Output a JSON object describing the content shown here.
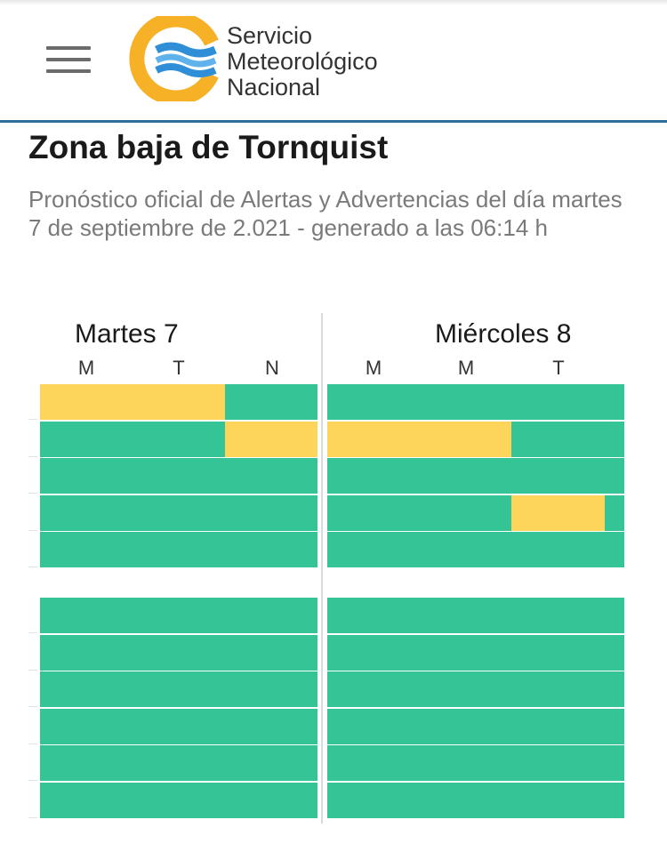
{
  "header": {
    "logo_lines": [
      "Servicio",
      "Meteorológico",
      "Nacional"
    ]
  },
  "page": {
    "title": "Zona baja de Tornquist",
    "subtitle": "Pronóstico oficial de Alertas y Advertencias del día martes 7 de septiembre de 2.021 - generado a las 06:14 h"
  },
  "days": [
    {
      "label": "Martes 7",
      "periods": [
        "M",
        "T",
        "N"
      ]
    },
    {
      "label": "Miércoles 8",
      "periods": [
        "M",
        "M",
        "T"
      ]
    }
  ],
  "colors": {
    "green": "#35c495",
    "yellow": "#fdd55a",
    "header_line": "#2f6c9a",
    "logo_orange": "#f6b126",
    "logo_blue": "#2e8fd8"
  },
  "alert_grid": {
    "group1": [
      {
        "day1": [
          [
            "yellow",
            0.0,
            0.667
          ],
          [
            "green",
            0.667,
            1.0
          ]
        ],
        "day2": [
          [
            "green",
            0.0,
            1.0
          ]
        ]
      },
      {
        "day1": [
          [
            "green",
            0.0,
            0.667
          ],
          [
            "yellow",
            0.667,
            1.0
          ]
        ],
        "day2": [
          [
            "yellow",
            0.0,
            0.62
          ],
          [
            "green",
            0.62,
            1.0
          ]
        ]
      },
      {
        "day1": [
          [
            "green",
            0.0,
            1.0
          ]
        ],
        "day2": [
          [
            "green",
            0.0,
            1.0
          ]
        ]
      },
      {
        "day1": [
          [
            "green",
            0.0,
            1.0
          ]
        ],
        "day2": [
          [
            "green",
            0.0,
            0.62
          ],
          [
            "yellow",
            0.62,
            0.935
          ],
          [
            "green",
            0.935,
            1.0
          ]
        ]
      },
      {
        "day1": [
          [
            "green",
            0.0,
            1.0
          ]
        ],
        "day2": [
          [
            "green",
            0.0,
            1.0
          ]
        ]
      }
    ],
    "group2": [
      {
        "day1": [
          [
            "green",
            0.0,
            1.0
          ]
        ],
        "day2": [
          [
            "green",
            0.0,
            1.0
          ]
        ]
      },
      {
        "day1": [
          [
            "green",
            0.0,
            1.0
          ]
        ],
        "day2": [
          [
            "green",
            0.0,
            1.0
          ]
        ]
      },
      {
        "day1": [
          [
            "green",
            0.0,
            1.0
          ]
        ],
        "day2": [
          [
            "green",
            0.0,
            1.0
          ]
        ]
      },
      {
        "day1": [
          [
            "green",
            0.0,
            1.0
          ]
        ],
        "day2": [
          [
            "green",
            0.0,
            1.0
          ]
        ]
      },
      {
        "day1": [
          [
            "green",
            0.0,
            1.0
          ]
        ],
        "day2": [
          [
            "green",
            0.0,
            1.0
          ]
        ]
      },
      {
        "day1": [
          [
            "green",
            0.0,
            1.0
          ]
        ],
        "day2": [
          [
            "green",
            0.0,
            1.0
          ]
        ]
      }
    ]
  }
}
